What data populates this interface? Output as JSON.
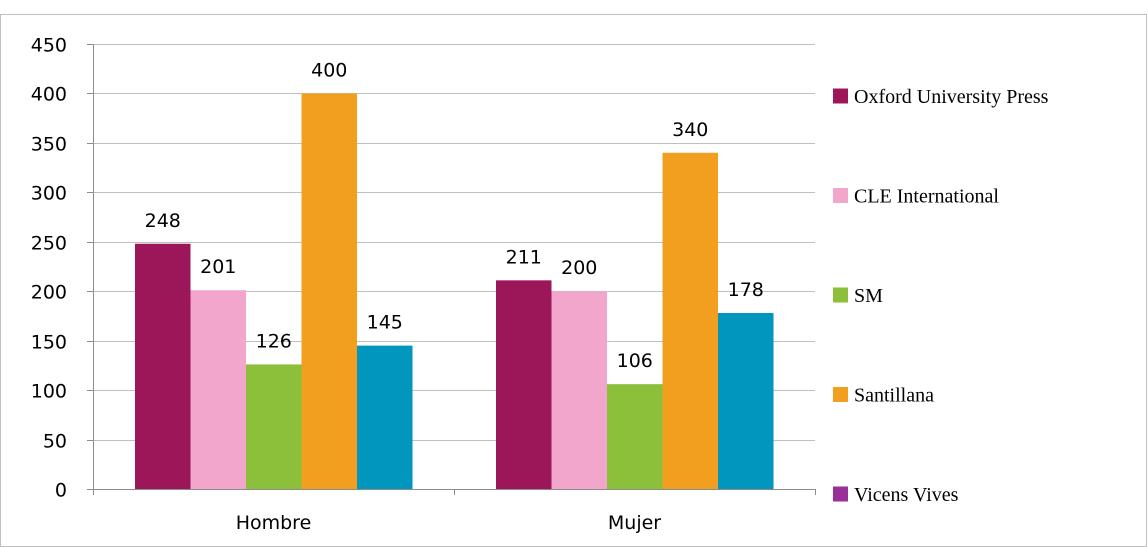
{
  "chart_data": {
    "type": "bar",
    "title": "",
    "xlabel": "",
    "ylabel": "",
    "categories": [
      "Hombre",
      "Mujer"
    ],
    "ylim": [
      0,
      450
    ],
    "yticks": [
      0,
      50,
      100,
      150,
      200,
      250,
      300,
      350,
      400,
      450
    ],
    "grid": true,
    "legend_position": "right",
    "series": [
      {
        "name": "Oxford University Press",
        "color": "#9c1759",
        "values": [
          248,
          211
        ]
      },
      {
        "name": "CLE International",
        "color": "#f2a6cc",
        "values": [
          201,
          200
        ]
      },
      {
        "name": "SM",
        "color": "#8cc03a",
        "values": [
          126,
          106
        ]
      },
      {
        "name": "Santillana",
        "color": "#f29f1f",
        "values": [
          400,
          340
        ]
      },
      {
        "name": "Vicens Vives",
        "color": "#9a2f9a",
        "values": [
          145,
          178
        ]
      }
    ],
    "data_label_bar_colors": [
      "#9c1759",
      "#f2a6cc",
      "#8cc03a",
      "#f29f1f",
      "#0096be"
    ]
  }
}
